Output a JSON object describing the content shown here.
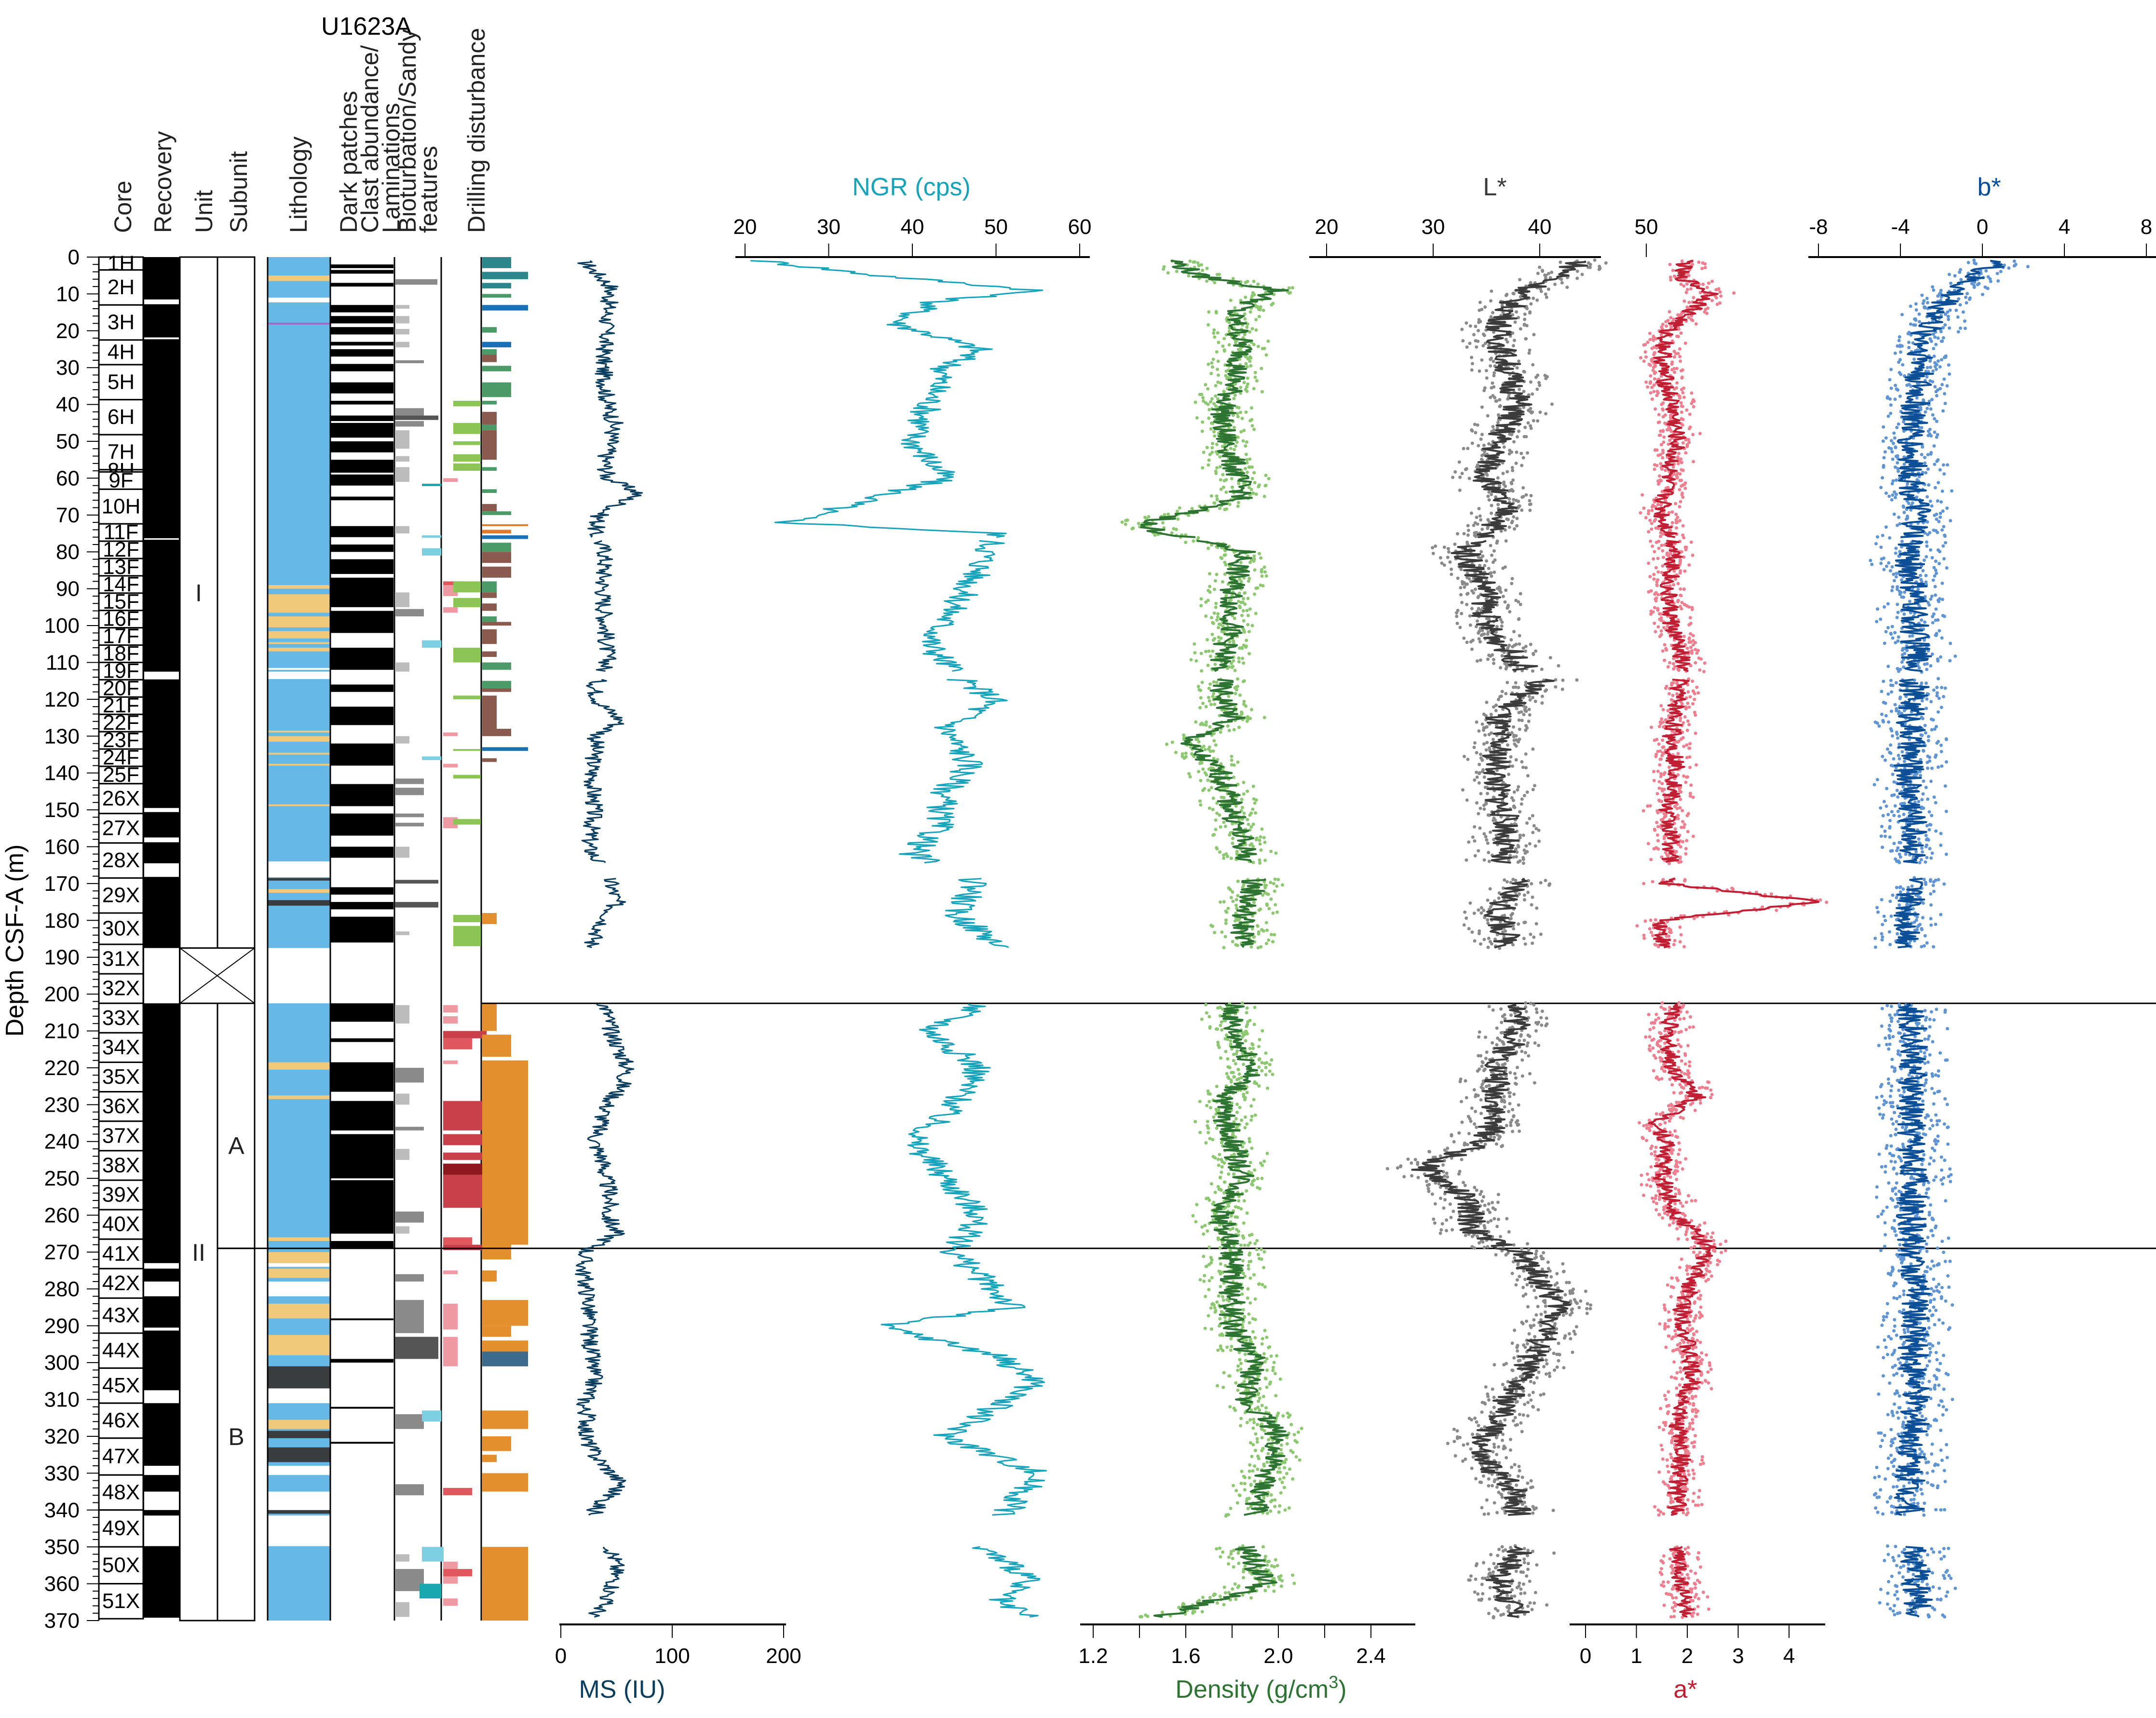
{
  "chart_data": {
    "type": "line",
    "title": "U1623A",
    "ylabel": "Depth CSF-A (m)",
    "ylim": [
      0,
      370
    ],
    "yticks": [
      0,
      10,
      20,
      30,
      40,
      50,
      60,
      70,
      80,
      90,
      100,
      110,
      120,
      130,
      140,
      150,
      160,
      170,
      180,
      190,
      200,
      210,
      220,
      230,
      240,
      250,
      260,
      270,
      280,
      290,
      300,
      310,
      320,
      330,
      340,
      350,
      360,
      370
    ],
    "column_headers": [
      "Core",
      "Recovery",
      "Unit",
      "Subunit",
      "Lithology",
      "Dark patches",
      "Clast abundance/ Laminations",
      "Bioturbation/Sandy features",
      "Drilling disturbance"
    ],
    "cores": [
      {
        "name": "1H",
        "top": 0,
        "bottom": 3.5
      },
      {
        "name": "2H",
        "top": 3.5,
        "bottom": 13
      },
      {
        "name": "3H",
        "top": 13,
        "bottom": 22.5
      },
      {
        "name": "4H",
        "top": 22.5,
        "bottom": 29.2
      },
      {
        "name": "5H",
        "top": 29.2,
        "bottom": 38.7
      },
      {
        "name": "6H",
        "top": 38.7,
        "bottom": 48.2
      },
      {
        "name": "7H",
        "top": 48.2,
        "bottom": 57.7
      },
      {
        "name": "8H",
        "top": 57.7,
        "bottom": 58.3
      },
      {
        "name": "9F",
        "top": 58.3,
        "bottom": 63
      },
      {
        "name": "10H",
        "top": 63,
        "bottom": 72.4
      },
      {
        "name": "11F",
        "top": 72.4,
        "bottom": 77.1
      },
      {
        "name": "12F",
        "top": 77.1,
        "bottom": 81.8
      },
      {
        "name": "13F",
        "top": 81.8,
        "bottom": 86.5
      },
      {
        "name": "14F",
        "top": 86.5,
        "bottom": 91.2
      },
      {
        "name": "15F",
        "top": 91.2,
        "bottom": 95.9
      },
      {
        "name": "16F",
        "top": 95.9,
        "bottom": 100.6
      },
      {
        "name": "17F",
        "top": 100.6,
        "bottom": 105.3
      },
      {
        "name": "18F",
        "top": 105.3,
        "bottom": 110
      },
      {
        "name": "19F",
        "top": 110,
        "bottom": 114.7
      },
      {
        "name": "20F",
        "top": 114.7,
        "bottom": 119.4
      },
      {
        "name": "21F",
        "top": 119.4,
        "bottom": 124.1
      },
      {
        "name": "22F",
        "top": 124.1,
        "bottom": 128.8
      },
      {
        "name": "23F",
        "top": 128.8,
        "bottom": 133.5
      },
      {
        "name": "24F",
        "top": 133.5,
        "bottom": 138.2
      },
      {
        "name": "25F",
        "top": 138.2,
        "bottom": 142.9
      },
      {
        "name": "26X",
        "top": 142.9,
        "bottom": 151
      },
      {
        "name": "27X",
        "top": 151,
        "bottom": 159
      },
      {
        "name": "28X",
        "top": 159,
        "bottom": 168.5
      },
      {
        "name": "29X",
        "top": 168.5,
        "bottom": 178
      },
      {
        "name": "30X",
        "top": 178,
        "bottom": 186.5
      },
      {
        "name": "31X",
        "top": 186.5,
        "bottom": 194.5
      },
      {
        "name": "32X",
        "top": 194.5,
        "bottom": 202.5
      },
      {
        "name": "33X",
        "top": 202.5,
        "bottom": 210.5
      },
      {
        "name": "34X",
        "top": 210.5,
        "bottom": 218.5
      },
      {
        "name": "35X",
        "top": 218.5,
        "bottom": 226.5
      },
      {
        "name": "36X",
        "top": 226.5,
        "bottom": 234.5
      },
      {
        "name": "37X",
        "top": 234.5,
        "bottom": 242.5
      },
      {
        "name": "38X",
        "top": 242.5,
        "bottom": 250.5
      },
      {
        "name": "39X",
        "top": 250.5,
        "bottom": 258.5
      },
      {
        "name": "40X",
        "top": 258.5,
        "bottom": 266.5
      },
      {
        "name": "41X",
        "top": 266.5,
        "bottom": 274.5
      },
      {
        "name": "42X",
        "top": 274.5,
        "bottom": 282.5
      },
      {
        "name": "43X",
        "top": 282.5,
        "bottom": 292
      },
      {
        "name": "44X",
        "top": 292,
        "bottom": 301.5
      },
      {
        "name": "45X",
        "top": 301.5,
        "bottom": 311
      },
      {
        "name": "46X",
        "top": 311,
        "bottom": 320.5
      },
      {
        "name": "47X",
        "top": 320.5,
        "bottom": 330.5
      },
      {
        "name": "48X",
        "top": 330.5,
        "bottom": 340
      },
      {
        "name": "49X",
        "top": 340,
        "bottom": 350
      },
      {
        "name": "50X",
        "top": 350,
        "bottom": 360
      },
      {
        "name": "51X",
        "top": 360,
        "bottom": 369.5
      }
    ],
    "recovery_gaps": [
      [
        11.5,
        12.8
      ],
      [
        21.8,
        22.3
      ],
      [
        76.3,
        76.7
      ],
      [
        112.5,
        114.6
      ],
      [
        149.5,
        150.6
      ],
      [
        157.5,
        158.8
      ],
      [
        164.5,
        168.2
      ],
      [
        187.5,
        202.5
      ],
      [
        273,
        274.5
      ],
      [
        278,
        282
      ],
      [
        290.5,
        291.3
      ],
      [
        307.5,
        311
      ],
      [
        328,
        330.5
      ],
      [
        335,
        340
      ],
      [
        341.5,
        349.8
      ]
    ],
    "units": [
      {
        "label": "I",
        "top": 0,
        "bottom": 187.5
      },
      {
        "label": "II",
        "top": 202.5,
        "bottom": 370
      }
    ],
    "subunits": [
      {
        "label": "A",
        "top": 202.5,
        "bottom": 269
      },
      {
        "label": "B",
        "top": 269,
        "bottom": 370
      }
    ],
    "unit_boundaries": [
      202.5,
      269
    ],
    "lithology_colors": {
      "clay": "#66b8e6",
      "sandy": "#f0c97a",
      "diamict": "#3a3d40",
      "other": "#a36bc4"
    },
    "tracks": [
      {
        "name": "MS",
        "label": "MS (IU)",
        "color": "#0b3d5e",
        "axis": "bottom",
        "ticks": [
          0,
          100,
          200
        ],
        "range": [
          0,
          200
        ]
      },
      {
        "name": "NGR",
        "label": "NGR (cps)",
        "color": "#17a4ba",
        "axis": "top",
        "ticks": [
          20,
          30,
          40,
          50,
          60
        ],
        "range": [
          20,
          60
        ]
      },
      {
        "name": "Density",
        "label": "Density (g/cm3)",
        "color": "#2d7332",
        "point_color": "#8cc870",
        "axis": "bottom",
        "ticks": [
          1.2,
          1.6,
          2.0,
          2.4
        ],
        "minor_ticks": [
          1.4,
          1.8,
          2.2
        ],
        "range": [
          1.2,
          2.6
        ]
      },
      {
        "name": "L*",
        "label": "L*",
        "color": "#3b3b3b",
        "point_color": "#8a8a8a",
        "axis": "top",
        "ticks": [
          20,
          30,
          40,
          50
        ],
        "range": [
          20,
          54
        ]
      },
      {
        "name": "a*",
        "label": "a*",
        "color": "#c01f33",
        "point_color": "#ef7f8f",
        "axis": "bottom",
        "ticks": [
          0,
          1,
          2,
          3,
          4
        ],
        "range": [
          -0.4,
          4.6
        ]
      },
      {
        "name": "b*",
        "label": "b*",
        "color": "#0d4f96",
        "point_color": "#5f95d4",
        "axis": "top",
        "ticks": [
          -8,
          -4,
          0,
          4,
          8
        ],
        "range": [
          -8,
          8
        ]
      }
    ],
    "series": [
      {
        "name": "MS",
        "depth": [
          1,
          8,
          15,
          22,
          30,
          40,
          45,
          50,
          55,
          60,
          64,
          70,
          75,
          80,
          90,
          100,
          110,
          117,
          121,
          126,
          130,
          135,
          140,
          150,
          160,
          170,
          175,
          180,
          186,
          203,
          210,
          220,
          225,
          230,
          240,
          245,
          250,
          255,
          260,
          265,
          270,
          275,
          283,
          290,
          300,
          305,
          312,
          315,
          320,
          325,
          333,
          340,
          350,
          355,
          360,
          365,
          369
        ],
        "values": [
          20,
          45,
          42,
          40,
          38,
          42,
          48,
          45,
          40,
          42,
          70,
          35,
          30,
          40,
          38,
          40,
          42,
          30,
          35,
          55,
          32,
          30,
          28,
          30,
          25,
          45,
          50,
          40,
          28,
          40,
          45,
          60,
          55,
          42,
          30,
          38,
          40,
          45,
          42,
          50,
          22,
          20,
          25,
          25,
          28,
          30,
          20,
          25,
          22,
          30,
          55,
          30,
          45,
          50,
          48,
          40,
          30
        ]
      },
      {
        "name": "NGR",
        "depth": [
          1,
          5,
          9,
          12,
          18,
          25,
          30,
          40,
          50,
          60,
          72,
          75,
          85,
          95,
          105,
          115,
          120,
          128,
          138,
          145,
          155,
          162,
          170,
          178,
          186,
          203,
          210,
          220,
          230,
          240,
          250,
          260,
          270,
          285,
          290,
          298,
          305,
          312,
          320,
          330,
          350,
          358,
          365,
          369
        ],
        "values": [
          22,
          36,
          55,
          43,
          38,
          48,
          44,
          42,
          40,
          44,
          25,
          50,
          48,
          45,
          42,
          46,
          50,
          44,
          47,
          44,
          43,
          40,
          48,
          45,
          50,
          48,
          42,
          48,
          45,
          40,
          44,
          48,
          45,
          52,
          36,
          50,
          55,
          50,
          44,
          55,
          48,
          54,
          50,
          54
        ]
      },
      {
        "name": "Density",
        "depth": [
          1,
          5,
          9,
          15,
          25,
          35,
          45,
          55,
          65,
          73,
          80,
          90,
          100,
          110,
          118,
          125,
          132,
          140,
          150,
          160,
          170,
          178,
          186,
          203,
          210,
          220,
          230,
          240,
          250,
          260,
          270,
          285,
          290,
          300,
          310,
          315,
          320,
          330,
          340,
          350,
          360,
          369
        ],
        "values": [
          1.55,
          1.65,
          2.0,
          1.8,
          1.85,
          1.8,
          1.75,
          1.8,
          1.85,
          1.4,
          1.85,
          1.8,
          1.8,
          1.75,
          1.75,
          1.8,
          1.6,
          1.75,
          1.8,
          1.85,
          1.9,
          1.85,
          1.85,
          1.8,
          1.8,
          1.9,
          1.75,
          1.8,
          1.85,
          1.75,
          1.8,
          1.8,
          1.8,
          1.9,
          1.85,
          1.95,
          2.0,
          1.95,
          1.9,
          1.85,
          1.95,
          1.5
        ]
      },
      {
        "name": "L*",
        "depth": [
          1,
          5,
          10,
          20,
          30,
          40,
          50,
          60,
          70,
          80,
          90,
          100,
          110,
          115,
          125,
          135,
          145,
          155,
          165,
          170,
          178,
          186,
          203,
          210,
          220,
          230,
          240,
          247,
          255,
          265,
          270,
          285,
          295,
          305,
          315,
          325,
          335,
          352,
          360,
          369
        ],
        "values": [
          44,
          42,
          38,
          36,
          37,
          38,
          36,
          35,
          37,
          33,
          35,
          35,
          38,
          40,
          36,
          36,
          36,
          37,
          36,
          38,
          36,
          37,
          38,
          38,
          36,
          36,
          35,
          29,
          33,
          34,
          38,
          42,
          40,
          38,
          36,
          34,
          38,
          38,
          36,
          38
        ]
      },
      {
        "name": "a*",
        "depth": [
          1,
          5,
          10,
          20,
          30,
          40,
          50,
          60,
          70,
          80,
          90,
          100,
          110,
          120,
          130,
          140,
          150,
          160,
          170,
          175,
          180,
          186,
          203,
          210,
          220,
          228,
          235,
          240,
          250,
          260,
          268,
          285,
          295,
          305,
          315,
          325,
          335,
          352,
          360,
          369
        ],
        "values": [
          2.0,
          1.8,
          2.5,
          1.6,
          1.5,
          1.7,
          1.8,
          1.6,
          1.5,
          1.8,
          1.6,
          1.7,
          1.9,
          1.8,
          1.7,
          1.8,
          1.6,
          1.7,
          1.6,
          4.6,
          1.5,
          1.5,
          1.8,
          1.6,
          1.7,
          2.2,
          1.4,
          1.6,
          1.5,
          1.8,
          2.4,
          1.9,
          2.0,
          2.1,
          1.8,
          1.9,
          1.8,
          1.8,
          1.9,
          2.0
        ]
      },
      {
        "name": "b*",
        "depth": [
          1,
          5,
          10,
          20,
          30,
          40,
          50,
          60,
          70,
          80,
          90,
          100,
          110,
          120,
          130,
          140,
          150,
          160,
          170,
          180,
          186,
          203,
          210,
          220,
          230,
          240,
          250,
          260,
          270,
          285,
          295,
          305,
          315,
          325,
          335,
          352,
          360,
          369
        ],
        "values": [
          1.0,
          -0.5,
          -1.5,
          -2.8,
          -3.0,
          -3.3,
          -3.5,
          -3.4,
          -3.2,
          -3.6,
          -3.4,
          -3.3,
          -3.2,
          -3.4,
          -3.5,
          -3.6,
          -3.4,
          -3.3,
          -3.5,
          -3.6,
          -3.5,
          -3.7,
          -3.3,
          -3.4,
          -3.5,
          -3.4,
          -3.3,
          -3.5,
          -3.4,
          -3.2,
          -3.4,
          -3.3,
          -3.3,
          -3.4,
          -3.6,
          -3.3,
          -3.2,
          -3.1
        ]
      }
    ]
  }
}
